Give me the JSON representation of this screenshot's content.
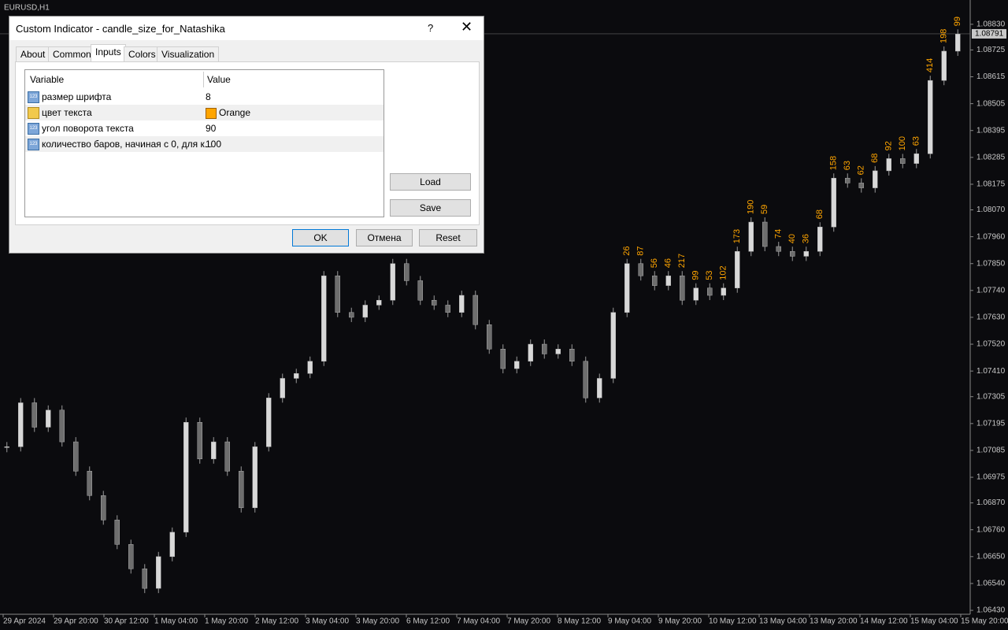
{
  "window": {
    "symbol": "EURUSD,H1"
  },
  "chart_data": {
    "type": "candlestick",
    "values": [
      1.071,
      1.0728,
      1.0718,
      1.0725,
      1.0712,
      1.07,
      1.069,
      1.068,
      1.067,
      1.066,
      1.0652,
      1.0665,
      1.0675,
      1.072,
      1.0705,
      1.0712,
      1.07,
      1.0685,
      1.071,
      1.073,
      1.0738,
      1.074,
      1.0745,
      1.078,
      1.0765,
      1.0763,
      1.0768,
      1.077,
      1.0785,
      1.0778,
      1.077,
      1.0768,
      1.0765,
      1.0772,
      1.076,
      1.075,
      1.0742,
      1.0745,
      1.0752,
      1.0748,
      1.075,
      1.0745,
      1.073,
      1.0738,
      1.0765,
      1.0785,
      1.078,
      1.0776,
      1.078,
      1.077,
      1.0775,
      1.0772,
      1.0775,
      1.079,
      1.0802,
      1.0792,
      1.079,
      1.0788,
      1.079,
      1.08,
      1.082,
      1.0818,
      1.0816,
      1.0823,
      1.0828,
      1.0826,
      1.083,
      1.086,
      1.0872,
      1.0879
    ],
    "size_labels": [
      null,
      null,
      null,
      null,
      null,
      null,
      null,
      null,
      null,
      null,
      null,
      null,
      null,
      null,
      null,
      null,
      null,
      null,
      null,
      null,
      null,
      null,
      null,
      null,
      null,
      null,
      null,
      null,
      null,
      null,
      null,
      null,
      null,
      null,
      null,
      null,
      null,
      null,
      null,
      null,
      null,
      null,
      null,
      null,
      null,
      26,
      87,
      56,
      46,
      217,
      99,
      53,
      102,
      173,
      190,
      59,
      74,
      40,
      36,
      68,
      158,
      63,
      62,
      68,
      92,
      100,
      63,
      414,
      198,
      99
    ],
    "label_color": "#ffa500",
    "ylim": [
      1.06414,
      1.08865
    ],
    "yticks": [
      {
        "value": 1.0883,
        "label": "1.08830"
      },
      {
        "value": 1.08725,
        "label": "1.08725"
      },
      {
        "value": 1.08615,
        "label": "1.08615"
      },
      {
        "value": 1.08505,
        "label": "1.08505"
      },
      {
        "value": 1.08395,
        "label": "1.08395"
      },
      {
        "value": 1.08285,
        "label": "1.08285"
      },
      {
        "value": 1.08175,
        "label": "1.08175"
      },
      {
        "value": 1.0807,
        "label": "1.08070"
      },
      {
        "value": 1.0796,
        "label": "1.07960"
      },
      {
        "value": 1.0785,
        "label": "1.07850"
      },
      {
        "value": 1.0774,
        "label": "1.07740"
      },
      {
        "value": 1.0763,
        "label": "1.07630"
      },
      {
        "value": 1.0752,
        "label": "1.07520"
      },
      {
        "value": 1.0741,
        "label": "1.07410"
      },
      {
        "value": 1.07305,
        "label": "1.07305"
      },
      {
        "value": 1.07195,
        "label": "1.07195"
      },
      {
        "value": 1.07085,
        "label": "1.07085"
      },
      {
        "value": 1.06975,
        "label": "1.06975"
      },
      {
        "value": 1.0687,
        "label": "1.06870"
      },
      {
        "value": 1.0676,
        "label": "1.06760"
      },
      {
        "value": 1.0665,
        "label": "1.06650"
      },
      {
        "value": 1.0654,
        "label": "1.06540"
      },
      {
        "value": 1.0643,
        "label": "1.06430"
      }
    ],
    "current_price": {
      "value": 1.08791,
      "label": "1.08791"
    },
    "time_labels": [
      "29 Apr 2024",
      "29 Apr 20:00",
      "30 Apr 12:00",
      "1 May 04:00",
      "1 May 20:00",
      "2 May 12:00",
      "3 May 04:00",
      "3 May 20:00",
      "6 May 12:00",
      "7 May 04:00",
      "7 May 20:00",
      "8 May 12:00",
      "9 May 04:00",
      "9 May 20:00",
      "10 May 12:00",
      "13 May 04:00",
      "13 May 20:00",
      "14 May 12:00",
      "15 May 04:00",
      "15 May 20:00"
    ]
  },
  "dialog": {
    "title": "Custom Indicator - candle_size_for_Natashika",
    "help": "?",
    "tabs": [
      "About",
      "Common",
      "Inputs",
      "Colors",
      "Visualization"
    ],
    "table": {
      "headers": [
        "Variable",
        "Value"
      ],
      "rows": [
        [
          "размер шрифта",
          "8"
        ],
        [
          "цвет текста",
          "Orange"
        ],
        [
          "угол поворота текста",
          "90"
        ],
        [
          "количество баров, начиная с 0, для к...",
          "100"
        ]
      ]
    },
    "buttons": {
      "load": "Load",
      "save": "Save",
      "ok": "OK",
      "cancel": "Отмена",
      "reset": "Reset"
    }
  }
}
